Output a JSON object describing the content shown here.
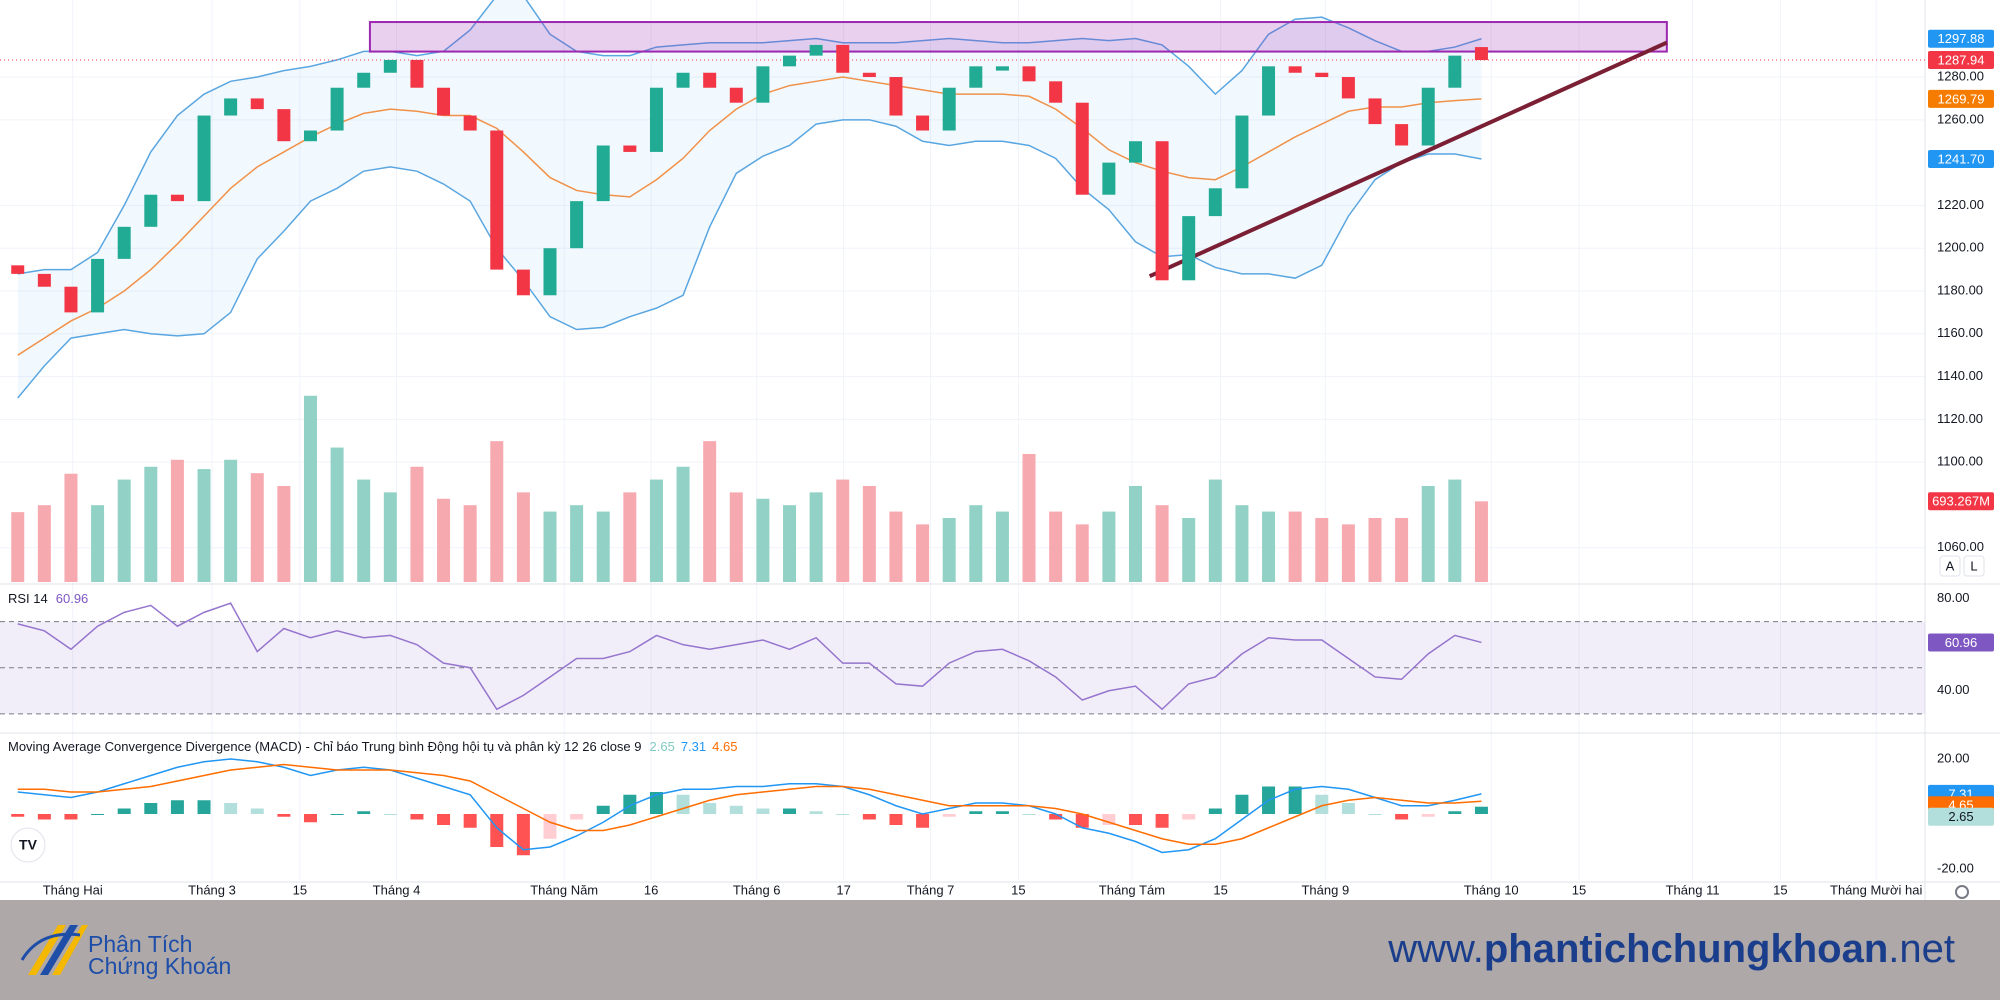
{
  "chart_data": {
    "type": "candlestick",
    "x": [
      2,
      5,
      8,
      11,
      14,
      17,
      20,
      23,
      26,
      29,
      32,
      35,
      38,
      41,
      44,
      47,
      50,
      53,
      56,
      59,
      62,
      65,
      68,
      71,
      74,
      77,
      80,
      83,
      86,
      89,
      92,
      95,
      98,
      101,
      104,
      107,
      110,
      113,
      116,
      119,
      122,
      125,
      128,
      131,
      134,
      137,
      140,
      143,
      146,
      149,
      152,
      155,
      158,
      161,
      164,
      167
    ],
    "xlim": [
      0,
      217
    ],
    "xticks": [
      {
        "value": 8.2,
        "label": "Tháng Hai"
      },
      {
        "value": 23.9,
        "label": "Tháng 3"
      },
      {
        "value": 33.8,
        "label": "15"
      },
      {
        "value": 44.7,
        "label": "Tháng 4"
      },
      {
        "value": 63.6,
        "label": "Tháng Năm"
      },
      {
        "value": 73.4,
        "label": "16"
      },
      {
        "value": 85.3,
        "label": "Tháng 6"
      },
      {
        "value": 95.1,
        "label": "17"
      },
      {
        "value": 104.9,
        "label": "Tháng 7"
      },
      {
        "value": 114.8,
        "label": "15"
      },
      {
        "value": 127.6,
        "label": "Tháng Tám"
      },
      {
        "value": 137.6,
        "label": "15"
      },
      {
        "value": 149.4,
        "label": "Tháng 9"
      },
      {
        "value": 168.1,
        "label": "Tháng 10"
      },
      {
        "value": 178,
        "label": "15"
      },
      {
        "value": 190.8,
        "label": "Tháng 11"
      },
      {
        "value": 200.7,
        "label": "15"
      },
      {
        "value": 211.5,
        "label": "Tháng Mười hai"
      }
    ],
    "price": {
      "ylim": [
        1044,
        1316
      ],
      "grid": true,
      "up_color": "#22ab94",
      "down_color": "#f23645",
      "yticks": [
        {
          "value": 1280,
          "label": "1280.00"
        },
        {
          "value": 1260,
          "label": "1260.00"
        },
        {
          "value": 1220,
          "label": "1220.00"
        },
        {
          "value": 1200,
          "label": "1200.00"
        },
        {
          "value": 1180,
          "label": "1180.00"
        },
        {
          "value": 1160,
          "label": "1160.00"
        },
        {
          "value": 1140,
          "label": "1140.00"
        },
        {
          "value": 1120,
          "label": "1120.00"
        },
        {
          "value": 1100,
          "label": "1100.00"
        },
        {
          "value": 1060,
          "label": "1060.00"
        }
      ],
      "open": [
        1192,
        1188,
        1182,
        1170,
        1195,
        1210,
        1225,
        1222,
        1262,
        1270,
        1265,
        1250,
        1255,
        1275,
        1282,
        1288,
        1275,
        1262,
        1255,
        1190,
        1178,
        1200,
        1222,
        1248,
        1245,
        1275,
        1282,
        1275,
        1268,
        1285,
        1290,
        1295,
        1282,
        1280,
        1262,
        1255,
        1275,
        1283,
        1285,
        1278,
        1268,
        1225,
        1240,
        1250,
        1185,
        1215,
        1228,
        1262,
        1285,
        1282,
        1280,
        1270,
        1258,
        1248,
        1275,
        1294
      ],
      "close": [
        1188,
        1182,
        1170,
        1195,
        1210,
        1225,
        1222,
        1262,
        1270,
        1265,
        1250,
        1255,
        1275,
        1282,
        1288,
        1275,
        1262,
        1255,
        1190,
        1178,
        1200,
        1222,
        1248,
        1245,
        1275,
        1282,
        1275,
        1268,
        1285,
        1290,
        1295,
        1282,
        1280,
        1262,
        1255,
        1275,
        1285,
        1285,
        1278,
        1268,
        1225,
        1240,
        1250,
        1185,
        1215,
        1228,
        1262,
        1285,
        1282,
        1280,
        1270,
        1258,
        1248,
        1275,
        1290,
        1287.94
      ],
      "bb_upper": {
        "color": "#5aa6e0",
        "values": [
          1188,
          1190,
          1190,
          1198,
          1220,
          1245,
          1262,
          1272,
          1278,
          1280,
          1283,
          1285,
          1288,
          1292,
          1292,
          1290,
          1292,
          1302,
          1318,
          1318,
          1300,
          1292,
          1290,
          1290,
          1294,
          1295,
          1296,
          1296,
          1296,
          1297,
          1298,
          1296,
          1296,
          1296,
          1297,
          1298,
          1297,
          1296,
          1296,
          1297,
          1298,
          1297,
          1298,
          1295,
          1285,
          1272,
          1283,
          1300,
          1307,
          1308,
          1303,
          1297,
          1292,
          1292,
          1294,
          1297.88
        ]
      },
      "bb_lower": {
        "color": "#5aa6e0",
        "last_label": "1241.70",
        "values": [
          1130,
          1145,
          1158,
          1160,
          1162,
          1160,
          1159,
          1160,
          1170,
          1195,
          1208,
          1222,
          1228,
          1236,
          1238,
          1236,
          1230,
          1222,
          1200,
          1185,
          1168,
          1162,
          1163,
          1168,
          1172,
          1178,
          1210,
          1235,
          1243,
          1248,
          1258,
          1260,
          1260,
          1257,
          1250,
          1248,
          1250,
          1250,
          1248,
          1242,
          1228,
          1218,
          1203,
          1196,
          1197,
          1191,
          1188,
          1188,
          1186,
          1192,
          1215,
          1232,
          1240,
          1244,
          1244,
          1241.7
        ]
      },
      "ma": {
        "color": "#f0914a",
        "values": [
          1150,
          1158,
          1166,
          1172,
          1180,
          1190,
          1202,
          1215,
          1228,
          1238,
          1245,
          1252,
          1258,
          1263,
          1265,
          1264,
          1262,
          1262,
          1256,
          1245,
          1233,
          1227,
          1225,
          1224,
          1232,
          1242,
          1255,
          1265,
          1272,
          1276,
          1278,
          1280,
          1278,
          1276,
          1274,
          1272,
          1272,
          1272,
          1271,
          1265,
          1256,
          1246,
          1240,
          1236,
          1233,
          1232,
          1238,
          1245,
          1252,
          1258,
          1264,
          1266,
          1266,
          1268,
          1269,
          1269.79
        ]
      },
      "trendline": {
        "color": "#7b1f35",
        "x": [
          129.6,
          187.9
        ],
        "y": [
          1186.9,
          1296.1
        ]
      },
      "zone": {
        "color": "#9c27b0",
        "x": [
          41.7,
          187.9
        ],
        "y": [
          1291.9,
          1305.7
        ]
      }
    },
    "volume": {
      "ylim": [
        0,
        5000
      ],
      "last_label": "693.267M",
      "values": [
        600,
        660,
        930,
        660,
        880,
        990,
        1050,
        970,
        1050,
        935,
        825,
        1600,
        1155,
        880,
        770,
        990,
        715,
        660,
        1210,
        770,
        605,
        660,
        605,
        770,
        880,
        990,
        1210,
        770,
        715,
        660,
        770,
        880,
        825,
        605,
        495,
        550,
        660,
        605,
        1100,
        605,
        495,
        605,
        825,
        660,
        550,
        880,
        660,
        605,
        605,
        550,
        495,
        550,
        550,
        825,
        880,
        693.267
      ]
    },
    "rsi": {
      "title": "RSI 14",
      "ylim": [
        23,
        85
      ],
      "band": [
        30,
        70
      ],
      "midline": 50,
      "color": "#9575cd",
      "yticks": [
        {
          "value": 80,
          "label": "80.00"
        },
        {
          "value": 40,
          "label": "40.00"
        }
      ],
      "values": [
        69,
        66,
        58,
        68,
        74,
        77,
        68,
        74,
        78,
        57,
        67,
        63,
        66,
        63,
        64,
        60,
        52,
        50,
        32,
        38,
        46,
        54,
        54,
        57,
        64,
        60,
        58,
        60,
        62,
        58,
        63,
        52,
        52,
        43,
        42,
        52,
        57,
        58,
        53,
        46,
        36,
        40,
        42,
        32,
        43,
        46,
        56,
        63,
        62,
        62,
        54,
        46,
        45,
        56,
        64,
        60.96
      ]
    },
    "macd": {
      "title": "Moving Average Convergence Divergence (MACD) - Chỉ báo Trung bình Động hội tụ và phân kỳ 12 26 close 9",
      "ylim": [
        -24,
        28
      ],
      "yticks": [
        {
          "value": 20,
          "label": "20.00"
        },
        {
          "value": -20,
          "label": "-20.00"
        }
      ],
      "histogram": {
        "values": [
          -1,
          -2,
          -2,
          0,
          2,
          4,
          5,
          5,
          4,
          2,
          -1,
          -3,
          0,
          1,
          0,
          -2,
          -4,
          -5,
          -12,
          -15,
          -9,
          -2,
          3,
          7,
          8,
          7,
          4,
          3,
          2,
          2,
          1,
          0,
          -2,
          -4,
          -5,
          -1,
          1,
          1,
          0,
          -2,
          -5,
          -4,
          -4,
          -5,
          -2,
          2,
          7,
          10,
          10,
          7,
          4,
          0,
          -2,
          -1,
          1,
          2.65
        ]
      },
      "macd_line": {
        "color": "#2196f3",
        "values": [
          8,
          7,
          6,
          8,
          11,
          14,
          17,
          19,
          20,
          19,
          17,
          14,
          16,
          17,
          16,
          13,
          10,
          7,
          -5,
          -13,
          -12,
          -8,
          -3,
          3,
          7,
          9,
          9,
          10,
          10,
          11,
          11,
          10,
          7,
          3,
          0,
          2,
          4,
          4,
          3,
          0,
          -5,
          -7,
          -10,
          -14,
          -13,
          -9,
          -2,
          5,
          9,
          10,
          9,
          6,
          3,
          3,
          5,
          7.31
        ]
      },
      "signal": {
        "color": "#ff6d00",
        "values": [
          9,
          9,
          8,
          8,
          9,
          10,
          12,
          14,
          16,
          17,
          18,
          17,
          16,
          16,
          16,
          15,
          14,
          12,
          7,
          2,
          -3,
          -6,
          -6,
          -4,
          -1,
          2,
          5,
          7,
          8,
          9,
          10,
          10,
          9,
          7,
          5,
          3,
          3,
          3,
          3,
          2,
          0,
          -3,
          -6,
          -9,
          -11,
          -11,
          -9,
          -5,
          -1,
          3,
          5,
          6,
          5,
          4,
          4,
          4.65
        ]
      }
    },
    "scale_buttons": [
      "A",
      "L"
    ]
  },
  "banner": {
    "logo_line1": "Phân Tích",
    "logo_line2": "Chứng Khoán",
    "url_prefix": "www.",
    "url_name": "phantichchungkhoan",
    "url_suffix": ".net"
  }
}
